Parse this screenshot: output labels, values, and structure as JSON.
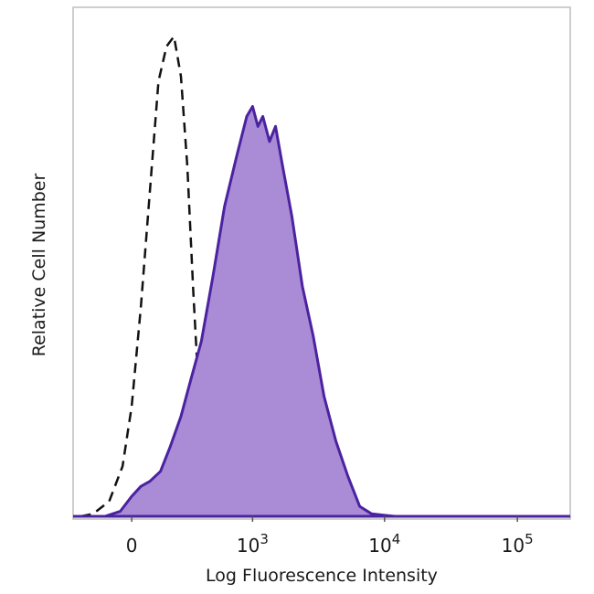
{
  "chart_data": {
    "type": "area",
    "title": "",
    "xlabel": "Log Fluorescence Intensity",
    "ylabel": "Relative Cell Number",
    "x_scale": "biexponential",
    "x_ticks": [
      {
        "value": 0,
        "label": "0"
      },
      {
        "value": 1000,
        "label": "10",
        "exponent": "3"
      },
      {
        "value": 10000,
        "label": "10",
        "exponent": "4"
      },
      {
        "value": 100000,
        "label": "10",
        "exponent": "5"
      }
    ],
    "xlim": [
      -300,
      250000
    ],
    "ylim": [
      0,
      100
    ],
    "grid": false,
    "legend": "none",
    "series": [
      {
        "style": "dashed",
        "color": "#111111",
        "fill": "none",
        "x": [
          -250,
          -180,
          -100,
          -40,
          0,
          40,
          80,
          120,
          160,
          200,
          240,
          280,
          320,
          360,
          400,
          440,
          500,
          580,
          680
        ],
        "y": [
          0,
          0.5,
          3,
          10,
          22,
          42,
          65,
          87,
          94,
          96,
          88,
          70,
          45,
          25,
          12,
          5,
          1.5,
          0.5,
          0
        ]
      },
      {
        "style": "solid",
        "color": "#4b23a0",
        "fill": "#a98bd6",
        "x": [
          -120,
          -50,
          0,
          40,
          80,
          130,
          180,
          240,
          300,
          380,
          480,
          600,
          750,
          900,
          1000,
          1100,
          1200,
          1350,
          1500,
          1700,
          2000,
          2400,
          2900,
          3500,
          4300,
          5300,
          6500,
          8000,
          10000,
          12000,
          15000
        ],
        "y": [
          0,
          1,
          4,
          6,
          7,
          9,
          14,
          20,
          27,
          35,
          48,
          62,
          72,
          80,
          82,
          78,
          80,
          75,
          78,
          70,
          60,
          46,
          36,
          24,
          15,
          8,
          2,
          0.5,
          0.2,
          0,
          0
        ]
      }
    ]
  }
}
